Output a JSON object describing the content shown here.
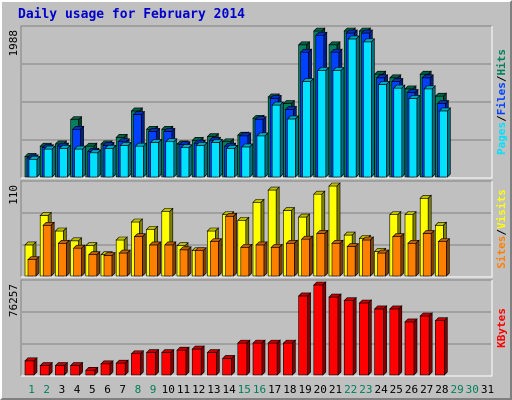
{
  "title": "Daily usage for February 2014",
  "colors": {
    "hits": "#00805c",
    "files": "#0040ff",
    "pages": "#00e0ff",
    "visits": "#ffff00",
    "sites": "#ff8000",
    "kbytes": "#ff0000",
    "weekend_day": "#00805c",
    "weekday": "#000000",
    "nodata_day": "#00805c"
  },
  "chart_data": [
    {
      "type": "bar",
      "panel": "hits-files-pages",
      "ymax_label": "1988",
      "ylim": [
        0,
        1988
      ],
      "grid": true,
      "x": [
        "1",
        "2",
        "3",
        "4",
        "5",
        "6",
        "7",
        "8",
        "9",
        "10",
        "11",
        "12",
        "13",
        "14",
        "15",
        "16",
        "17",
        "18",
        "19",
        "20",
        "21",
        "22",
        "23",
        "24",
        "25",
        "26",
        "27",
        "28"
      ],
      "series": [
        {
          "name": "Hits",
          "values": [
            280,
            420,
            450,
            780,
            420,
            450,
            540,
            900,
            650,
            650,
            450,
            500,
            550,
            480,
            570,
            800,
            1090,
            1000,
            1800,
            1988,
            1800,
            1988,
            1988,
            1400,
            1350,
            1200,
            1400,
            1100
          ]
        },
        {
          "name": "Files",
          "values": [
            260,
            400,
            420,
            650,
            350,
            430,
            480,
            850,
            620,
            620,
            440,
            460,
            500,
            420,
            560,
            780,
            1070,
            920,
            1700,
            1930,
            1700,
            1960,
            1960,
            1350,
            1300,
            1150,
            1350,
            1000
          ]
        },
        {
          "name": "Pages",
          "values": [
            240,
            380,
            390,
            380,
            330,
            390,
            430,
            420,
            470,
            480,
            400,
            430,
            470,
            390,
            410,
            560,
            980,
            790,
            1300,
            1450,
            1450,
            1880,
            1840,
            1260,
            1210,
            1070,
            1200,
            900
          ]
        }
      ],
      "side_labels": [
        "Pages",
        "Files",
        "Hits"
      ],
      "separator": "/"
    },
    {
      "type": "bar",
      "panel": "visits-sites",
      "ymax_label": "110",
      "ylim": [
        0,
        110
      ],
      "grid": true,
      "x": [
        "1",
        "2",
        "3",
        "4",
        "5",
        "6",
        "7",
        "8",
        "9",
        "10",
        "11",
        "12",
        "13",
        "14",
        "15",
        "16",
        "17",
        "18",
        "19",
        "20",
        "21",
        "22",
        "23",
        "24",
        "25",
        "26",
        "27",
        "28"
      ],
      "series": [
        {
          "name": "Visits",
          "values": [
            38,
            74,
            55,
            43,
            37,
            26,
            44,
            66,
            57,
            79,
            37,
            31,
            55,
            75,
            68,
            90,
            105,
            80,
            72,
            100,
            110,
            50,
            46,
            30,
            75,
            75,
            95,
            62
          ]
        },
        {
          "name": "Sites",
          "values": [
            20,
            62,
            40,
            34,
            26,
            25,
            28,
            48,
            38,
            38,
            32,
            31,
            42,
            73,
            35,
            38,
            35,
            40,
            45,
            52,
            40,
            36,
            44,
            28,
            48,
            40,
            52,
            42
          ]
        }
      ],
      "side_labels": [
        "Sites",
        "Visits"
      ],
      "separator": "/"
    },
    {
      "type": "bar",
      "panel": "kbytes",
      "ymax_label": "76257",
      "ylim": [
        0,
        76257
      ],
      "grid": true,
      "x": [
        "1",
        "2",
        "3",
        "4",
        "5",
        "6",
        "7",
        "8",
        "9",
        "10",
        "11",
        "12",
        "13",
        "14",
        "15",
        "16",
        "17",
        "18",
        "19",
        "20",
        "21",
        "22",
        "23",
        "24",
        "25",
        "26",
        "27",
        "28"
      ],
      "series": [
        {
          "name": "KBytes",
          "values": [
            12000,
            8000,
            8000,
            8000,
            4000,
            9500,
            10000,
            18000,
            19000,
            19000,
            21000,
            22000,
            19000,
            14000,
            27000,
            27000,
            27000,
            27000,
            67000,
            76257,
            66000,
            63000,
            61000,
            56000,
            56000,
            45000,
            50000,
            46000
          ]
        }
      ],
      "side_labels": [
        "KBytes"
      ],
      "separator": ""
    }
  ],
  "x_axis_days": [
    {
      "label": "1",
      "type": "weekend"
    },
    {
      "label": "2",
      "type": "weekend"
    },
    {
      "label": "3",
      "type": "weekday"
    },
    {
      "label": "4",
      "type": "weekday"
    },
    {
      "label": "5",
      "type": "weekday"
    },
    {
      "label": "6",
      "type": "weekday"
    },
    {
      "label": "7",
      "type": "weekday"
    },
    {
      "label": "8",
      "type": "weekend"
    },
    {
      "label": "9",
      "type": "weekend"
    },
    {
      "label": "10",
      "type": "weekday"
    },
    {
      "label": "11",
      "type": "weekday"
    },
    {
      "label": "12",
      "type": "weekday"
    },
    {
      "label": "13",
      "type": "weekday"
    },
    {
      "label": "14",
      "type": "weekday"
    },
    {
      "label": "15",
      "type": "weekend"
    },
    {
      "label": "16",
      "type": "weekend"
    },
    {
      "label": "17",
      "type": "weekday"
    },
    {
      "label": "18",
      "type": "weekday"
    },
    {
      "label": "19",
      "type": "weekday"
    },
    {
      "label": "20",
      "type": "weekday"
    },
    {
      "label": "21",
      "type": "weekday"
    },
    {
      "label": "22",
      "type": "weekend"
    },
    {
      "label": "23",
      "type": "weekend"
    },
    {
      "label": "24",
      "type": "weekday"
    },
    {
      "label": "25",
      "type": "weekday"
    },
    {
      "label": "26",
      "type": "weekday"
    },
    {
      "label": "27",
      "type": "weekday"
    },
    {
      "label": "28",
      "type": "weekday"
    },
    {
      "label": "29",
      "type": "nodata"
    },
    {
      "label": "30",
      "type": "nodata"
    },
    {
      "label": "31",
      "type": "weekday"
    }
  ]
}
